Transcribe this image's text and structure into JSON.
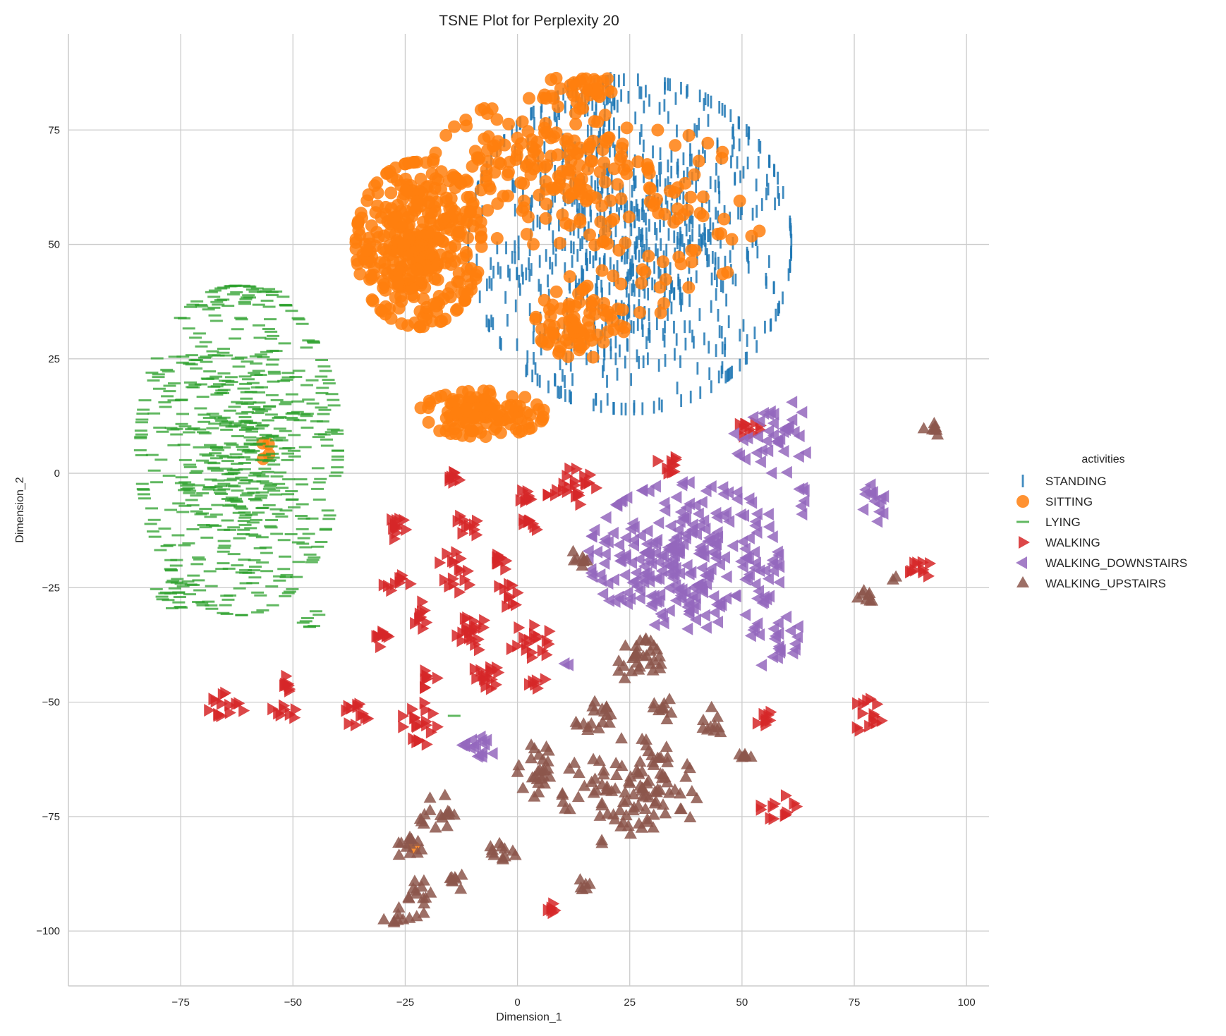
{
  "chart_data": {
    "type": "scatter",
    "title": "TSNE Plot for Perplexity 20",
    "xlabel": "Dimension_1",
    "ylabel": "Dimension_2",
    "xlim": [
      -100,
      105
    ],
    "ylim": [
      -112,
      96
    ],
    "xticks": [
      -75,
      -50,
      -25,
      0,
      25,
      50,
      75,
      100
    ],
    "yticks": [
      75,
      50,
      25,
      0,
      -25,
      -50,
      -75,
      -100
    ],
    "grid": true,
    "legend": {
      "title": "activities",
      "placement": "right",
      "entries": [
        "STANDING",
        "SITTING",
        "LYING",
        "WALKING",
        "WALKING_DOWNSTAIRS",
        "WALKING_UPSTAIRS"
      ]
    },
    "series": [
      {
        "name": "STANDING",
        "marker": "vline",
        "color": "#1f77b4",
        "clusters": [
          {
            "cx": 25,
            "cy": 50,
            "rx": 36,
            "ry": 36,
            "n": 850
          },
          {
            "cx": 18,
            "cy": 82,
            "rx": 8,
            "ry": 5,
            "n": 30
          }
        ]
      },
      {
        "name": "SITTING",
        "marker": "circle",
        "color": "#ff7f0e",
        "clusters": [
          {
            "cx": -22,
            "cy": 50,
            "rx": 14,
            "ry": 18,
            "n": 380
          },
          {
            "cx": 5,
            "cy": 66,
            "rx": 24,
            "ry": 16,
            "n": 160
          },
          {
            "cx": -8,
            "cy": 13,
            "rx": 14,
            "ry": 5,
            "n": 120
          },
          {
            "cx": 14,
            "cy": 33,
            "rx": 10,
            "ry": 8,
            "n": 80
          },
          {
            "cx": 30,
            "cy": 55,
            "rx": 24,
            "ry": 20,
            "n": 95
          },
          {
            "cx": 15,
            "cy": 84,
            "rx": 10,
            "ry": 3,
            "n": 30
          },
          {
            "cx": -56,
            "cy": 6,
            "rx": 2,
            "ry": 3,
            "n": 4
          },
          {
            "cx": -23,
            "cy": -82,
            "rx": 1,
            "ry": 1,
            "n": 1
          }
        ]
      },
      {
        "name": "LYING",
        "marker": "hline",
        "color": "#2ca02c",
        "clusters": [
          {
            "cx": -62,
            "cy": 5,
            "rx": 22,
            "ry": 36,
            "n": 620
          },
          {
            "cx": -62,
            "cy": 38,
            "rx": 10,
            "ry": 3,
            "n": 25
          },
          {
            "cx": -75,
            "cy": -26,
            "rx": 7,
            "ry": 4,
            "n": 25
          },
          {
            "cx": -46,
            "cy": -32,
            "rx": 3,
            "ry": 3,
            "n": 8
          },
          {
            "cx": -14,
            "cy": -52,
            "rx": 1,
            "ry": 1,
            "n": 1
          }
        ]
      },
      {
        "name": "WALKING",
        "marker": "tri-right",
        "color": "#d62728",
        "clusters": [
          {
            "cx": -65,
            "cy": -51,
            "rx": 4,
            "ry": 3,
            "n": 14
          },
          {
            "cx": -52,
            "cy": -45,
            "rx": 2,
            "ry": 3,
            "n": 8
          },
          {
            "cx": -52,
            "cy": -52,
            "rx": 3,
            "ry": 2,
            "n": 8
          },
          {
            "cx": -36,
            "cy": -52,
            "rx": 4,
            "ry": 3,
            "n": 12
          },
          {
            "cx": -30,
            "cy": -36,
            "rx": 3,
            "ry": 2,
            "n": 10
          },
          {
            "cx": -27,
            "cy": -12,
            "rx": 3,
            "ry": 3,
            "n": 12
          },
          {
            "cx": -27,
            "cy": -24,
            "rx": 3,
            "ry": 3,
            "n": 10
          },
          {
            "cx": -22,
            "cy": -55,
            "rx": 4,
            "ry": 5,
            "n": 20
          },
          {
            "cx": -22,
            "cy": -31,
            "rx": 3,
            "ry": 3,
            "n": 10
          },
          {
            "cx": -20,
            "cy": -45,
            "rx": 2,
            "ry": 2,
            "n": 8
          },
          {
            "cx": -15,
            "cy": -1,
            "rx": 2,
            "ry": 2,
            "n": 8
          },
          {
            "cx": -14,
            "cy": -22,
            "rx": 4,
            "ry": 5,
            "n": 16
          },
          {
            "cx": -11,
            "cy": -11,
            "rx": 3,
            "ry": 3,
            "n": 10
          },
          {
            "cx": -11,
            "cy": -35,
            "rx": 5,
            "ry": 4,
            "n": 20
          },
          {
            "cx": -7,
            "cy": -45,
            "rx": 4,
            "ry": 3,
            "n": 16
          },
          {
            "cx": -3,
            "cy": -27,
            "rx": 3,
            "ry": 3,
            "n": 10
          },
          {
            "cx": -3,
            "cy": -19,
            "rx": 2,
            "ry": 2,
            "n": 8
          },
          {
            "cx": 1,
            "cy": -5,
            "rx": 2,
            "ry": 2,
            "n": 8
          },
          {
            "cx": 3,
            "cy": -11,
            "rx": 2,
            "ry": 2,
            "n": 8
          },
          {
            "cx": 3,
            "cy": -37,
            "rx": 5,
            "ry": 4,
            "n": 18
          },
          {
            "cx": 4,
            "cy": -45,
            "rx": 2,
            "ry": 2,
            "n": 6
          },
          {
            "cx": 12,
            "cy": -3,
            "rx": 6,
            "ry": 4,
            "n": 24
          },
          {
            "cx": 33,
            "cy": 2,
            "rx": 3,
            "ry": 2,
            "n": 10
          },
          {
            "cx": 51,
            "cy": 10,
            "rx": 3,
            "ry": 2,
            "n": 10
          },
          {
            "cx": 55,
            "cy": -54,
            "rx": 3,
            "ry": 2,
            "n": 8
          },
          {
            "cx": 58,
            "cy": -73,
            "rx": 4,
            "ry": 3,
            "n": 12
          },
          {
            "cx": 78,
            "cy": -53,
            "rx": 3,
            "ry": 5,
            "n": 14
          },
          {
            "cx": 89,
            "cy": -21,
            "rx": 3,
            "ry": 3,
            "n": 10
          },
          {
            "cx": 8,
            "cy": -95,
            "rx": 2,
            "ry": 2,
            "n": 6
          }
        ]
      },
      {
        "name": "WALKING_DOWNSTAIRS",
        "marker": "tri-left",
        "color": "#9467bd",
        "clusters": [
          {
            "cx": 38,
            "cy": -18,
            "rx": 22,
            "ry": 16,
            "n": 280
          },
          {
            "cx": 58,
            "cy": 8,
            "rx": 10,
            "ry": 8,
            "n": 40
          },
          {
            "cx": 58,
            "cy": -37,
            "rx": 6,
            "ry": 6,
            "n": 24
          },
          {
            "cx": 80,
            "cy": -6,
            "rx": 3,
            "ry": 5,
            "n": 14
          },
          {
            "cx": 64,
            "cy": -6,
            "rx": 2,
            "ry": 3,
            "n": 6
          },
          {
            "cx": -9,
            "cy": -60,
            "rx": 4,
            "ry": 3,
            "n": 16
          },
          {
            "cx": 11,
            "cy": -42,
            "rx": 1,
            "ry": 1,
            "n": 2
          }
        ]
      },
      {
        "name": "WALKING_UPSTAIRS",
        "marker": "tri-up",
        "color": "#8c564b",
        "clusters": [
          {
            "cx": 25,
            "cy": -70,
            "rx": 15,
            "ry": 12,
            "n": 110
          },
          {
            "cx": 27,
            "cy": -41,
            "rx": 5,
            "ry": 5,
            "n": 30
          },
          {
            "cx": 17,
            "cy": -54,
            "rx": 4,
            "ry": 4,
            "n": 18
          },
          {
            "cx": 33,
            "cy": -52,
            "rx": 3,
            "ry": 3,
            "n": 10
          },
          {
            "cx": 43,
            "cy": -54,
            "rx": 3,
            "ry": 4,
            "n": 10
          },
          {
            "cx": 50,
            "cy": -62,
            "rx": 2,
            "ry": 2,
            "n": 6
          },
          {
            "cx": 5,
            "cy": -65,
            "rx": 5,
            "ry": 6,
            "n": 26
          },
          {
            "cx": 14,
            "cy": -19,
            "rx": 2,
            "ry": 3,
            "n": 8
          },
          {
            "cx": -18,
            "cy": -74,
            "rx": 4,
            "ry": 4,
            "n": 16
          },
          {
            "cx": -24,
            "cy": -82,
            "rx": 3,
            "ry": 3,
            "n": 12
          },
          {
            "cx": -22,
            "cy": -92,
            "rx": 3,
            "ry": 5,
            "n": 14
          },
          {
            "cx": -27,
            "cy": -97,
            "rx": 3,
            "ry": 2,
            "n": 8
          },
          {
            "cx": -4,
            "cy": -83,
            "rx": 4,
            "ry": 3,
            "n": 12
          },
          {
            "cx": -12,
            "cy": -89,
            "rx": 3,
            "ry": 2,
            "n": 8
          },
          {
            "cx": 15,
            "cy": -90,
            "rx": 2,
            "ry": 2,
            "n": 6
          },
          {
            "cx": 77,
            "cy": -27,
            "rx": 3,
            "ry": 2,
            "n": 8
          },
          {
            "cx": 92,
            "cy": 10,
            "rx": 3,
            "ry": 2,
            "n": 8
          },
          {
            "cx": 84,
            "cy": -23,
            "rx": 1,
            "ry": 1,
            "n": 2
          }
        ]
      }
    ]
  }
}
